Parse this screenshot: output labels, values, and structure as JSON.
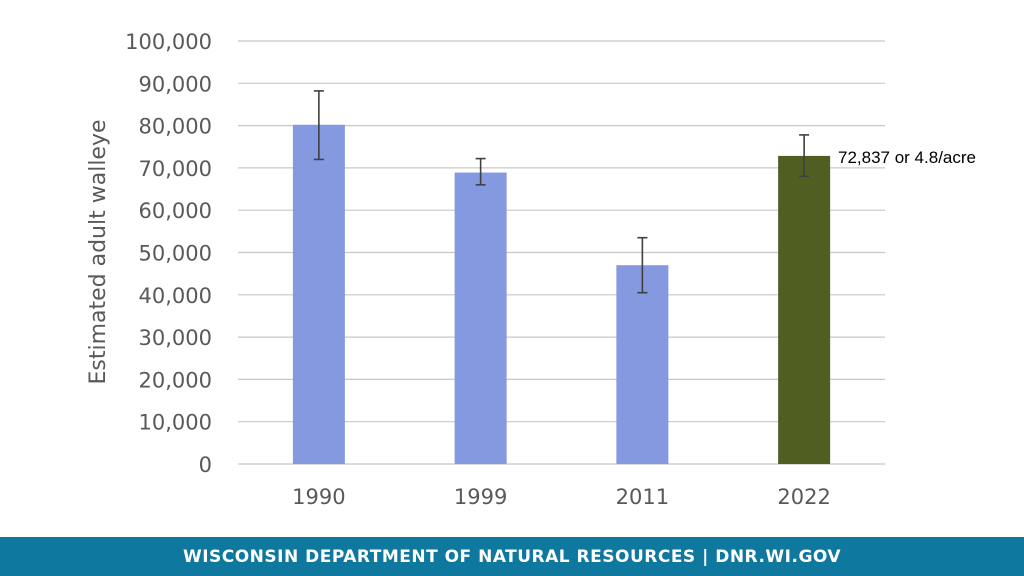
{
  "colors": {
    "bar_default": "#8599e0",
    "bar_highlight": "#505e22",
    "grid": "#c8c8c8",
    "error_bar": "#404040",
    "footer_bg": "#0e789f"
  },
  "chart_data": {
    "type": "bar",
    "categories": [
      "1990",
      "1999",
      "2011",
      "2022"
    ],
    "values": [
      80200,
      68900,
      47000,
      72837
    ],
    "error_low": [
      72000,
      66000,
      40500,
      68000
    ],
    "error_high": [
      88200,
      72200,
      53500,
      77800
    ],
    "highlight_index": 3,
    "ylabel": "Estimated adult walleye",
    "xlabel": "",
    "ylim": [
      0,
      100000
    ],
    "yticks": [
      0,
      10000,
      20000,
      30000,
      40000,
      50000,
      60000,
      70000,
      80000,
      90000,
      100000
    ],
    "ytick_labels": [
      "0",
      "10,000",
      "20,000",
      "30,000",
      "40,000",
      "50,000",
      "60,000",
      "70,000",
      "80,000",
      "90,000",
      "100,000"
    ],
    "grid": true,
    "annotation": "72,837 or 4.8/acre"
  },
  "footer": {
    "text": "WISCONSIN DEPARTMENT OF NATURAL RESOURCES | DNR.WI.GOV"
  }
}
